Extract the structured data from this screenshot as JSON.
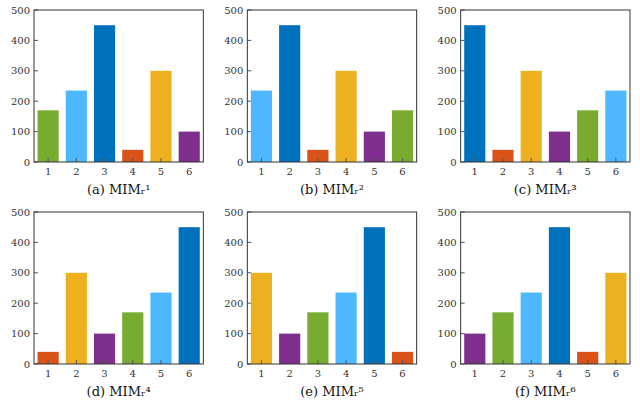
{
  "chart_data": [
    {
      "type": "bar",
      "x_label": "(a) MIMᵣ¹",
      "categories": [
        "1",
        "2",
        "3",
        "4",
        "5",
        "6"
      ],
      "values": [
        170,
        235,
        450,
        40,
        300,
        100
      ],
      "colors": [
        "#77ac30",
        "#4db8ff",
        "#0072bd",
        "#d95319",
        "#edb120",
        "#7e2f8e"
      ],
      "ylim": [
        0,
        500
      ],
      "yticks": [
        0,
        100,
        200,
        300,
        400,
        500
      ],
      "grid": false
    },
    {
      "type": "bar",
      "x_label": "(b) MIMᵣ²",
      "categories": [
        "1",
        "2",
        "3",
        "4",
        "5",
        "6"
      ],
      "values": [
        235,
        450,
        40,
        300,
        100,
        170
      ],
      "colors": [
        "#4db8ff",
        "#0072bd",
        "#d95319",
        "#edb120",
        "#7e2f8e",
        "#77ac30"
      ],
      "ylim": [
        0,
        500
      ],
      "yticks": [
        0,
        100,
        200,
        300,
        400,
        500
      ],
      "grid": false
    },
    {
      "type": "bar",
      "x_label": "(c) MIMᵣ³",
      "categories": [
        "1",
        "2",
        "3",
        "4",
        "5",
        "6"
      ],
      "values": [
        450,
        40,
        300,
        100,
        170,
        235
      ],
      "colors": [
        "#0072bd",
        "#d95319",
        "#edb120",
        "#7e2f8e",
        "#77ac30",
        "#4db8ff"
      ],
      "ylim": [
        0,
        500
      ],
      "yticks": [
        0,
        100,
        200,
        300,
        400,
        500
      ],
      "grid": false
    },
    {
      "type": "bar",
      "x_label": "(d) MIMᵣ⁴",
      "categories": [
        "1",
        "2",
        "3",
        "4",
        "5",
        "6"
      ],
      "values": [
        40,
        300,
        100,
        170,
        235,
        450
      ],
      "colors": [
        "#d95319",
        "#edb120",
        "#7e2f8e",
        "#77ac30",
        "#4db8ff",
        "#0072bd"
      ],
      "ylim": [
        0,
        500
      ],
      "yticks": [
        0,
        100,
        200,
        300,
        400,
        500
      ],
      "grid": false
    },
    {
      "type": "bar",
      "x_label": "(e) MIMᵣ⁵",
      "categories": [
        "1",
        "2",
        "3",
        "4",
        "5",
        "6"
      ],
      "values": [
        300,
        100,
        170,
        235,
        450,
        40
      ],
      "colors": [
        "#edb120",
        "#7e2f8e",
        "#77ac30",
        "#4db8ff",
        "#0072bd",
        "#d95319"
      ],
      "ylim": [
        0,
        500
      ],
      "yticks": [
        0,
        100,
        200,
        300,
        400,
        500
      ],
      "grid": false
    },
    {
      "type": "bar",
      "x_label": "(f) MIMᵣ⁶",
      "categories": [
        "1",
        "2",
        "3",
        "4",
        "5",
        "6"
      ],
      "values": [
        100,
        170,
        235,
        450,
        40,
        300
      ],
      "colors": [
        "#7e2f8e",
        "#77ac30",
        "#4db8ff",
        "#0072bd",
        "#d95319",
        "#edb120"
      ],
      "ylim": [
        0,
        500
      ],
      "yticks": [
        0,
        100,
        200,
        300,
        400,
        500
      ],
      "grid": false
    }
  ]
}
